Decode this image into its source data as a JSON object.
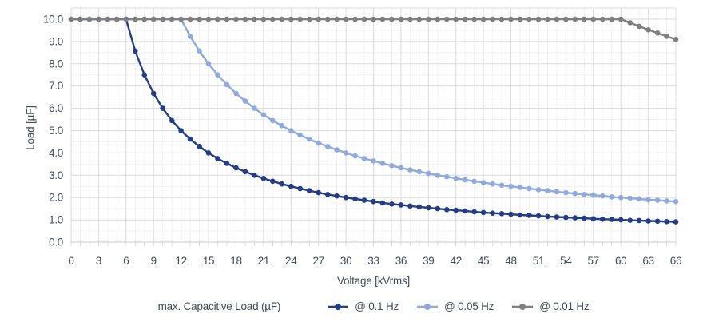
{
  "figure": {
    "background": "#ffffff",
    "text_color": "#3e4a57",
    "grid_major_color": "#dadbdc",
    "grid_minor_color": "#f2f2f3"
  },
  "chart_data": {
    "type": "line",
    "title": "",
    "xlabel": "Voltage [kVrms]",
    "ylabel": "Load [µF]",
    "xlim": [
      0,
      66
    ],
    "ylim": [
      0,
      10.5
    ],
    "grid": "on",
    "legend_position": "bottom",
    "legend_title": "max. Capacitive Load (µF)",
    "x_major_ticks": [
      0,
      3,
      6,
      9,
      12,
      15,
      18,
      21,
      24,
      27,
      30,
      33,
      36,
      39,
      42,
      45,
      48,
      51,
      54,
      57,
      60,
      63,
      66
    ],
    "x_minor_step": 1,
    "y_ticks": [
      "0.0",
      "1.0",
      "2.0",
      "3.0",
      "4.0",
      "5.0",
      "6.0",
      "7.0",
      "8.0",
      "9.0",
      "10.0"
    ],
    "y_minor_step": 0.5,
    "x": [
      0,
      1,
      2,
      3,
      4,
      5,
      6,
      7,
      8,
      9,
      10,
      11,
      12,
      13,
      14,
      15,
      16,
      17,
      18,
      19,
      20,
      21,
      22,
      23,
      24,
      25,
      26,
      27,
      28,
      29,
      30,
      31,
      32,
      33,
      34,
      35,
      36,
      37,
      38,
      39,
      40,
      41,
      42,
      43,
      44,
      45,
      46,
      47,
      48,
      49,
      50,
      51,
      52,
      53,
      54,
      55,
      56,
      57,
      58,
      59,
      60,
      61,
      62,
      63,
      64,
      65,
      66
    ],
    "series": [
      {
        "name": "@ 0.1 Hz",
        "color": "#223c86",
        "values": [
          10,
          10,
          10,
          10,
          10,
          10,
          10,
          8.57,
          7.5,
          6.67,
          6,
          5.45,
          5,
          4.62,
          4.29,
          4,
          3.75,
          3.53,
          3.33,
          3.16,
          3,
          2.86,
          2.73,
          2.61,
          2.5,
          2.4,
          2.31,
          2.22,
          2.14,
          2.07,
          2,
          1.94,
          1.88,
          1.82,
          1.76,
          1.71,
          1.67,
          1.62,
          1.58,
          1.54,
          1.5,
          1.46,
          1.43,
          1.4,
          1.36,
          1.33,
          1.3,
          1.28,
          1.25,
          1.22,
          1.2,
          1.18,
          1.15,
          1.13,
          1.11,
          1.09,
          1.07,
          1.05,
          1.03,
          1.02,
          1,
          0.98,
          0.97,
          0.95,
          0.94,
          0.92,
          0.91
        ]
      },
      {
        "name": "@ 0.05 Hz",
        "color": "#8faadc",
        "values": [
          10,
          10,
          10,
          10,
          10,
          10,
          10,
          10,
          10,
          10,
          10,
          10,
          10,
          9.23,
          8.57,
          8,
          7.5,
          7.06,
          6.67,
          6.32,
          6,
          5.71,
          5.45,
          5.22,
          5,
          4.8,
          4.62,
          4.44,
          4.29,
          4.14,
          4,
          3.87,
          3.75,
          3.64,
          3.53,
          3.43,
          3.33,
          3.24,
          3.16,
          3.08,
          3,
          2.93,
          2.86,
          2.79,
          2.73,
          2.67,
          2.61,
          2.55,
          2.5,
          2.45,
          2.4,
          2.35,
          2.31,
          2.26,
          2.22,
          2.18,
          2.14,
          2.11,
          2.07,
          2.03,
          2,
          1.97,
          1.94,
          1.9,
          1.88,
          1.85,
          1.82
        ]
      },
      {
        "name": "@ 0.01 Hz",
        "color": "#7f7f7f",
        "values": [
          10,
          10,
          10,
          10,
          10,
          10,
          10,
          10,
          10,
          10,
          10,
          10,
          10,
          10,
          10,
          10,
          10,
          10,
          10,
          10,
          10,
          10,
          10,
          10,
          10,
          10,
          10,
          10,
          10,
          10,
          10,
          10,
          10,
          10,
          10,
          10,
          10,
          10,
          10,
          10,
          10,
          10,
          10,
          10,
          10,
          10,
          10,
          10,
          10,
          10,
          10,
          10,
          10,
          10,
          10,
          10,
          10,
          10,
          10,
          10,
          10,
          9.84,
          9.68,
          9.52,
          9.38,
          9.23,
          9.09
        ]
      }
    ]
  }
}
